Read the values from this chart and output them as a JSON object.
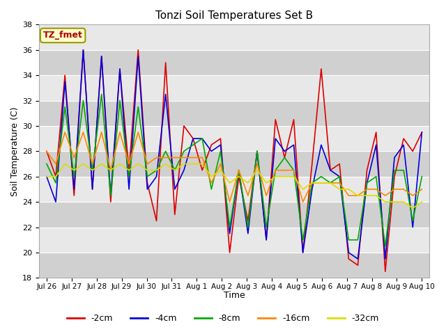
{
  "title": "Tonzi Soil Temperatures Set B",
  "xlabel": "Time",
  "ylabel": "Soil Temperature (C)",
  "ylim": [
    18,
    38
  ],
  "yticks": [
    18,
    20,
    22,
    24,
    26,
    28,
    30,
    32,
    34,
    36,
    38
  ],
  "annotation_text": "TZ_fmet",
  "annotation_bg": "#ffffcc",
  "annotation_border": "#999900",
  "annotation_textcolor": "#aa0000",
  "fig_bg": "#ffffff",
  "plot_bg_light": "#e8e8e8",
  "plot_bg_dark": "#d0d0d0",
  "line_colors": {
    "-2cm": "#dd0000",
    "-4cm": "#0000dd",
    "-8cm": "#00aa00",
    "-16cm": "#ff8800",
    "-32cm": "#dddd00"
  },
  "xtick_labels": [
    "Jul 26",
    "Jul 27",
    "Jul 28",
    "Jul 29",
    "Jul 30",
    "Jul 31",
    "Aug 1",
    "Aug 2",
    "Aug 3",
    "Aug 4",
    "Aug 5",
    "Aug 6",
    "Aug 7",
    "Aug 8",
    "Aug 9",
    "Aug 10"
  ],
  "series": {
    "-2cm": [
      28.0,
      26.0,
      34.0,
      24.5,
      36.0,
      25.0,
      35.5,
      24.0,
      34.5,
      26.5,
      36.0,
      25.5,
      22.5,
      35.0,
      23.0,
      30.0,
      29.0,
      26.5,
      28.5,
      29.0,
      20.0,
      26.0,
      22.5,
      28.0,
      21.0,
      30.5,
      27.5,
      30.5,
      20.0,
      27.0,
      34.5,
      26.5,
      27.0,
      19.5,
      19.0,
      26.5,
      29.5,
      18.5,
      26.0,
      29.0,
      28.0,
      29.5
    ],
    "-4cm": [
      26.0,
      24.0,
      33.5,
      25.0,
      36.0,
      25.0,
      35.5,
      24.5,
      34.5,
      25.0,
      35.5,
      25.0,
      26.0,
      32.5,
      25.0,
      26.5,
      29.0,
      29.0,
      28.0,
      28.5,
      21.5,
      26.5,
      21.5,
      28.0,
      21.0,
      29.0,
      28.0,
      28.5,
      20.0,
      25.0,
      28.5,
      26.5,
      26.0,
      20.0,
      19.5,
      25.5,
      28.5,
      19.5,
      27.5,
      28.5,
      22.0,
      29.5
    ],
    "-8cm": [
      27.0,
      25.5,
      31.5,
      26.0,
      32.0,
      26.5,
      32.5,
      24.5,
      32.0,
      26.0,
      31.5,
      26.0,
      26.5,
      28.0,
      26.5,
      28.0,
      28.5,
      29.0,
      25.0,
      28.0,
      22.0,
      26.5,
      22.0,
      28.0,
      22.0,
      26.5,
      27.5,
      26.5,
      21.0,
      25.5,
      26.0,
      25.5,
      26.0,
      21.0,
      21.0,
      25.5,
      26.0,
      20.5,
      26.5,
      26.5,
      22.5,
      26.0
    ],
    "-16cm": [
      28.0,
      27.0,
      29.5,
      27.5,
      29.5,
      27.0,
      29.5,
      26.5,
      29.5,
      27.0,
      29.5,
      27.0,
      27.5,
      27.5,
      27.5,
      27.5,
      27.5,
      27.5,
      25.5,
      27.0,
      24.0,
      26.5,
      24.5,
      27.0,
      24.5,
      26.5,
      26.5,
      26.5,
      24.0,
      25.5,
      25.5,
      25.5,
      25.5,
      24.5,
      24.5,
      25.0,
      25.0,
      24.5,
      25.0,
      25.0,
      24.5,
      25.0
    ],
    "-32cm": [
      26.0,
      26.0,
      27.0,
      26.5,
      27.0,
      26.5,
      27.0,
      26.5,
      27.0,
      26.5,
      27.0,
      26.5,
      26.5,
      27.0,
      26.5,
      27.0,
      27.0,
      27.0,
      26.0,
      26.5,
      25.5,
      26.0,
      25.5,
      26.5,
      25.5,
      26.0,
      26.0,
      26.0,
      25.0,
      25.5,
      25.5,
      25.5,
      25.0,
      25.0,
      24.5,
      24.5,
      24.5,
      24.0,
      24.0,
      24.0,
      23.5,
      24.0
    ]
  }
}
